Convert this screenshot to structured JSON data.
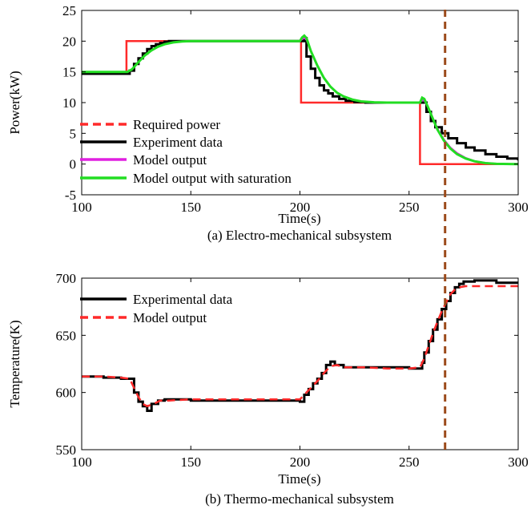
{
  "chart_data": [
    {
      "type": "line",
      "caption": "(a) Electro-mechanical subsystem",
      "xlabel": "Time(s)",
      "ylabel": "Power(kW)",
      "xlim": [
        100,
        300
      ],
      "ylim": [
        -5,
        25
      ],
      "xticks": [
        100,
        150,
        200,
        250,
        300
      ],
      "yticks": [
        -5,
        0,
        5,
        10,
        15,
        20,
        25
      ],
      "grid": false,
      "legend_position": "bottom-left",
      "series": [
        {
          "name": "Required power",
          "color": "#ff2a2a",
          "style": "dashed-legend",
          "step": true,
          "x": [
            100,
            120.5,
            120.5,
            200.5,
            200.5,
            255,
            255,
            300
          ],
          "y": [
            15,
            15,
            20,
            20,
            10,
            10,
            0,
            0
          ]
        },
        {
          "name": "Experiment data",
          "color": "#000000",
          "style": "solid",
          "step": true,
          "x": [
            100,
            122,
            124,
            126,
            128,
            130,
            132,
            134,
            136,
            138,
            140,
            145,
            150,
            200,
            202,
            203,
            205,
            207,
            209,
            211,
            213,
            215,
            218,
            221,
            225,
            230,
            240,
            256,
            258,
            260,
            262,
            265,
            268,
            272,
            276,
            280,
            285,
            290,
            295,
            300
          ],
          "y": [
            14.7,
            15.2,
            16.3,
            17.2,
            18,
            18.7,
            19.2,
            19.5,
            19.7,
            19.9,
            20,
            20,
            20,
            20,
            20.5,
            17.5,
            15.5,
            14,
            12.8,
            12,
            11.5,
            11,
            10.6,
            10.3,
            10.1,
            10,
            10,
            10,
            8.5,
            7,
            6,
            5,
            4.2,
            3.4,
            2.7,
            2.2,
            1.6,
            1.2,
            0.9,
            0.6
          ]
        },
        {
          "name": "Model output",
          "color": "#e020e0",
          "style": "solid",
          "step": false,
          "x": [
            100,
            121,
            123,
            126,
            129,
            132,
            135,
            138,
            142,
            146,
            150,
            200,
            201,
            202,
            203,
            205,
            208,
            211,
            214,
            217,
            220,
            224,
            228,
            234,
            240,
            255,
            256,
            257,
            259,
            261,
            263,
            266,
            269,
            272,
            276,
            280,
            285,
            290,
            300
          ],
          "y": [
            15,
            15,
            15.4,
            16.6,
            17.7,
            18.5,
            19.1,
            19.5,
            19.8,
            19.95,
            20,
            20,
            20.3,
            20.5,
            20.2,
            18.4,
            16,
            14,
            12.6,
            11.6,
            11,
            10.5,
            10.2,
            10.05,
            10,
            10,
            10.4,
            10.3,
            9,
            7.4,
            5.8,
            4,
            2.7,
            1.8,
            1,
            0.5,
            0.2,
            0.05,
            0
          ]
        },
        {
          "name": "Model output with saturation",
          "color": "#22dd22",
          "style": "solid",
          "step": false,
          "x": [
            100,
            121,
            123,
            126,
            129,
            132,
            135,
            138,
            142,
            146,
            150,
            200,
            201,
            202,
            203,
            205,
            208,
            211,
            214,
            217,
            220,
            224,
            228,
            234,
            240,
            255,
            256,
            257,
            259,
            261,
            263,
            266,
            269,
            272,
            276,
            280,
            285,
            290,
            300
          ],
          "y": [
            15,
            15,
            15.4,
            16.6,
            17.7,
            18.5,
            19.1,
            19.5,
            19.8,
            19.95,
            20,
            20,
            20.6,
            20.9,
            20.5,
            18.4,
            16,
            14,
            12.6,
            11.6,
            11,
            10.5,
            10.2,
            10.05,
            10,
            10,
            10.8,
            10.6,
            9,
            7.3,
            5.6,
            3.8,
            2.5,
            1.6,
            0.9,
            0.45,
            0.15,
            0.03,
            0
          ]
        }
      ],
      "marker_line": {
        "x": 266.5,
        "color": "#9b4a1a"
      }
    },
    {
      "type": "line",
      "caption": "(b) Thermo-mechanical subsystem",
      "xlabel": "Time(s)",
      "ylabel": "Temperature(K)",
      "xlim": [
        100,
        300
      ],
      "ylim": [
        550,
        700
      ],
      "xticks": [
        100,
        150,
        200,
        250,
        300
      ],
      "yticks": [
        550,
        600,
        650,
        700
      ],
      "grid": false,
      "legend_position": "top-left",
      "series": [
        {
          "name": "Experimental data",
          "color": "#000000",
          "style": "solid",
          "step": true,
          "x": [
            100,
            110,
            118,
            124,
            126,
            128,
            130,
            132,
            135,
            138,
            142,
            150,
            170,
            190,
            200,
            202,
            204,
            206,
            208,
            210,
            212,
            214,
            216,
            220,
            230,
            240,
            250,
            256,
            257,
            259,
            261,
            263,
            265,
            267,
            269,
            271,
            273,
            275,
            280,
            290,
            300
          ],
          "y": [
            614,
            613,
            612,
            600,
            592,
            588,
            584,
            590,
            593,
            594,
            594,
            593,
            593,
            593,
            592,
            598,
            603,
            608,
            612,
            617,
            624,
            627,
            624,
            622,
            622,
            622,
            621,
            626,
            635,
            645,
            655,
            664,
            673,
            680,
            687,
            692,
            695,
            697,
            698,
            696,
            695
          ]
        },
        {
          "name": "Model output",
          "color": "#ff2a2a",
          "style": "dashed",
          "step": false,
          "x": [
            100,
            110,
            118,
            122,
            124,
            126,
            128,
            130,
            133,
            136,
            140,
            150,
            170,
            190,
            200,
            202,
            205,
            208,
            211,
            214,
            217,
            220,
            230,
            240,
            250,
            255,
            257,
            259,
            261,
            263,
            265,
            267,
            269,
            271,
            273,
            276,
            280,
            290,
            300
          ],
          "y": [
            614,
            614,
            613,
            612,
            604,
            596,
            590,
            588,
            590,
            593,
            593,
            594,
            594,
            594,
            594,
            598,
            604,
            610,
            617,
            623,
            624,
            622,
            622,
            621,
            621,
            622,
            630,
            641,
            652,
            662,
            671,
            679,
            686,
            690,
            692,
            693,
            693,
            693,
            693
          ]
        }
      ],
      "marker_line": {
        "x": 266.5,
        "color": "#9b4a1a"
      }
    }
  ]
}
